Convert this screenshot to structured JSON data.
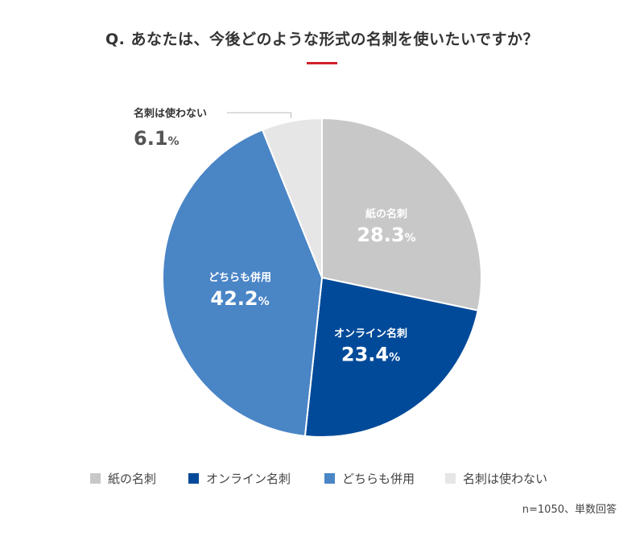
{
  "chart_data": {
    "type": "pie",
    "title": "Q. あなたは、今後どのような形式の名刺を使いたいですか？",
    "categories": [
      "紙の名刺",
      "オンライン名刺",
      "どちらも併用",
      "名刺は使わない"
    ],
    "values": [
      28.3,
      23.4,
      42.2,
      6.1
    ],
    "value_labels": [
      "28.3",
      "23.4",
      "42.2",
      "6.1"
    ],
    "unit": "%",
    "colors": [
      "#c8c8c8",
      "#004a99",
      "#4a85c6",
      "#e6e6e6"
    ],
    "legend": "bottom",
    "note": "n=1050、単数回答"
  },
  "theme": {
    "accent": "#d0202a",
    "inside_label_color": "#ffffff",
    "outside_label_color": "#333333",
    "value_outside_color": "#555555"
  }
}
